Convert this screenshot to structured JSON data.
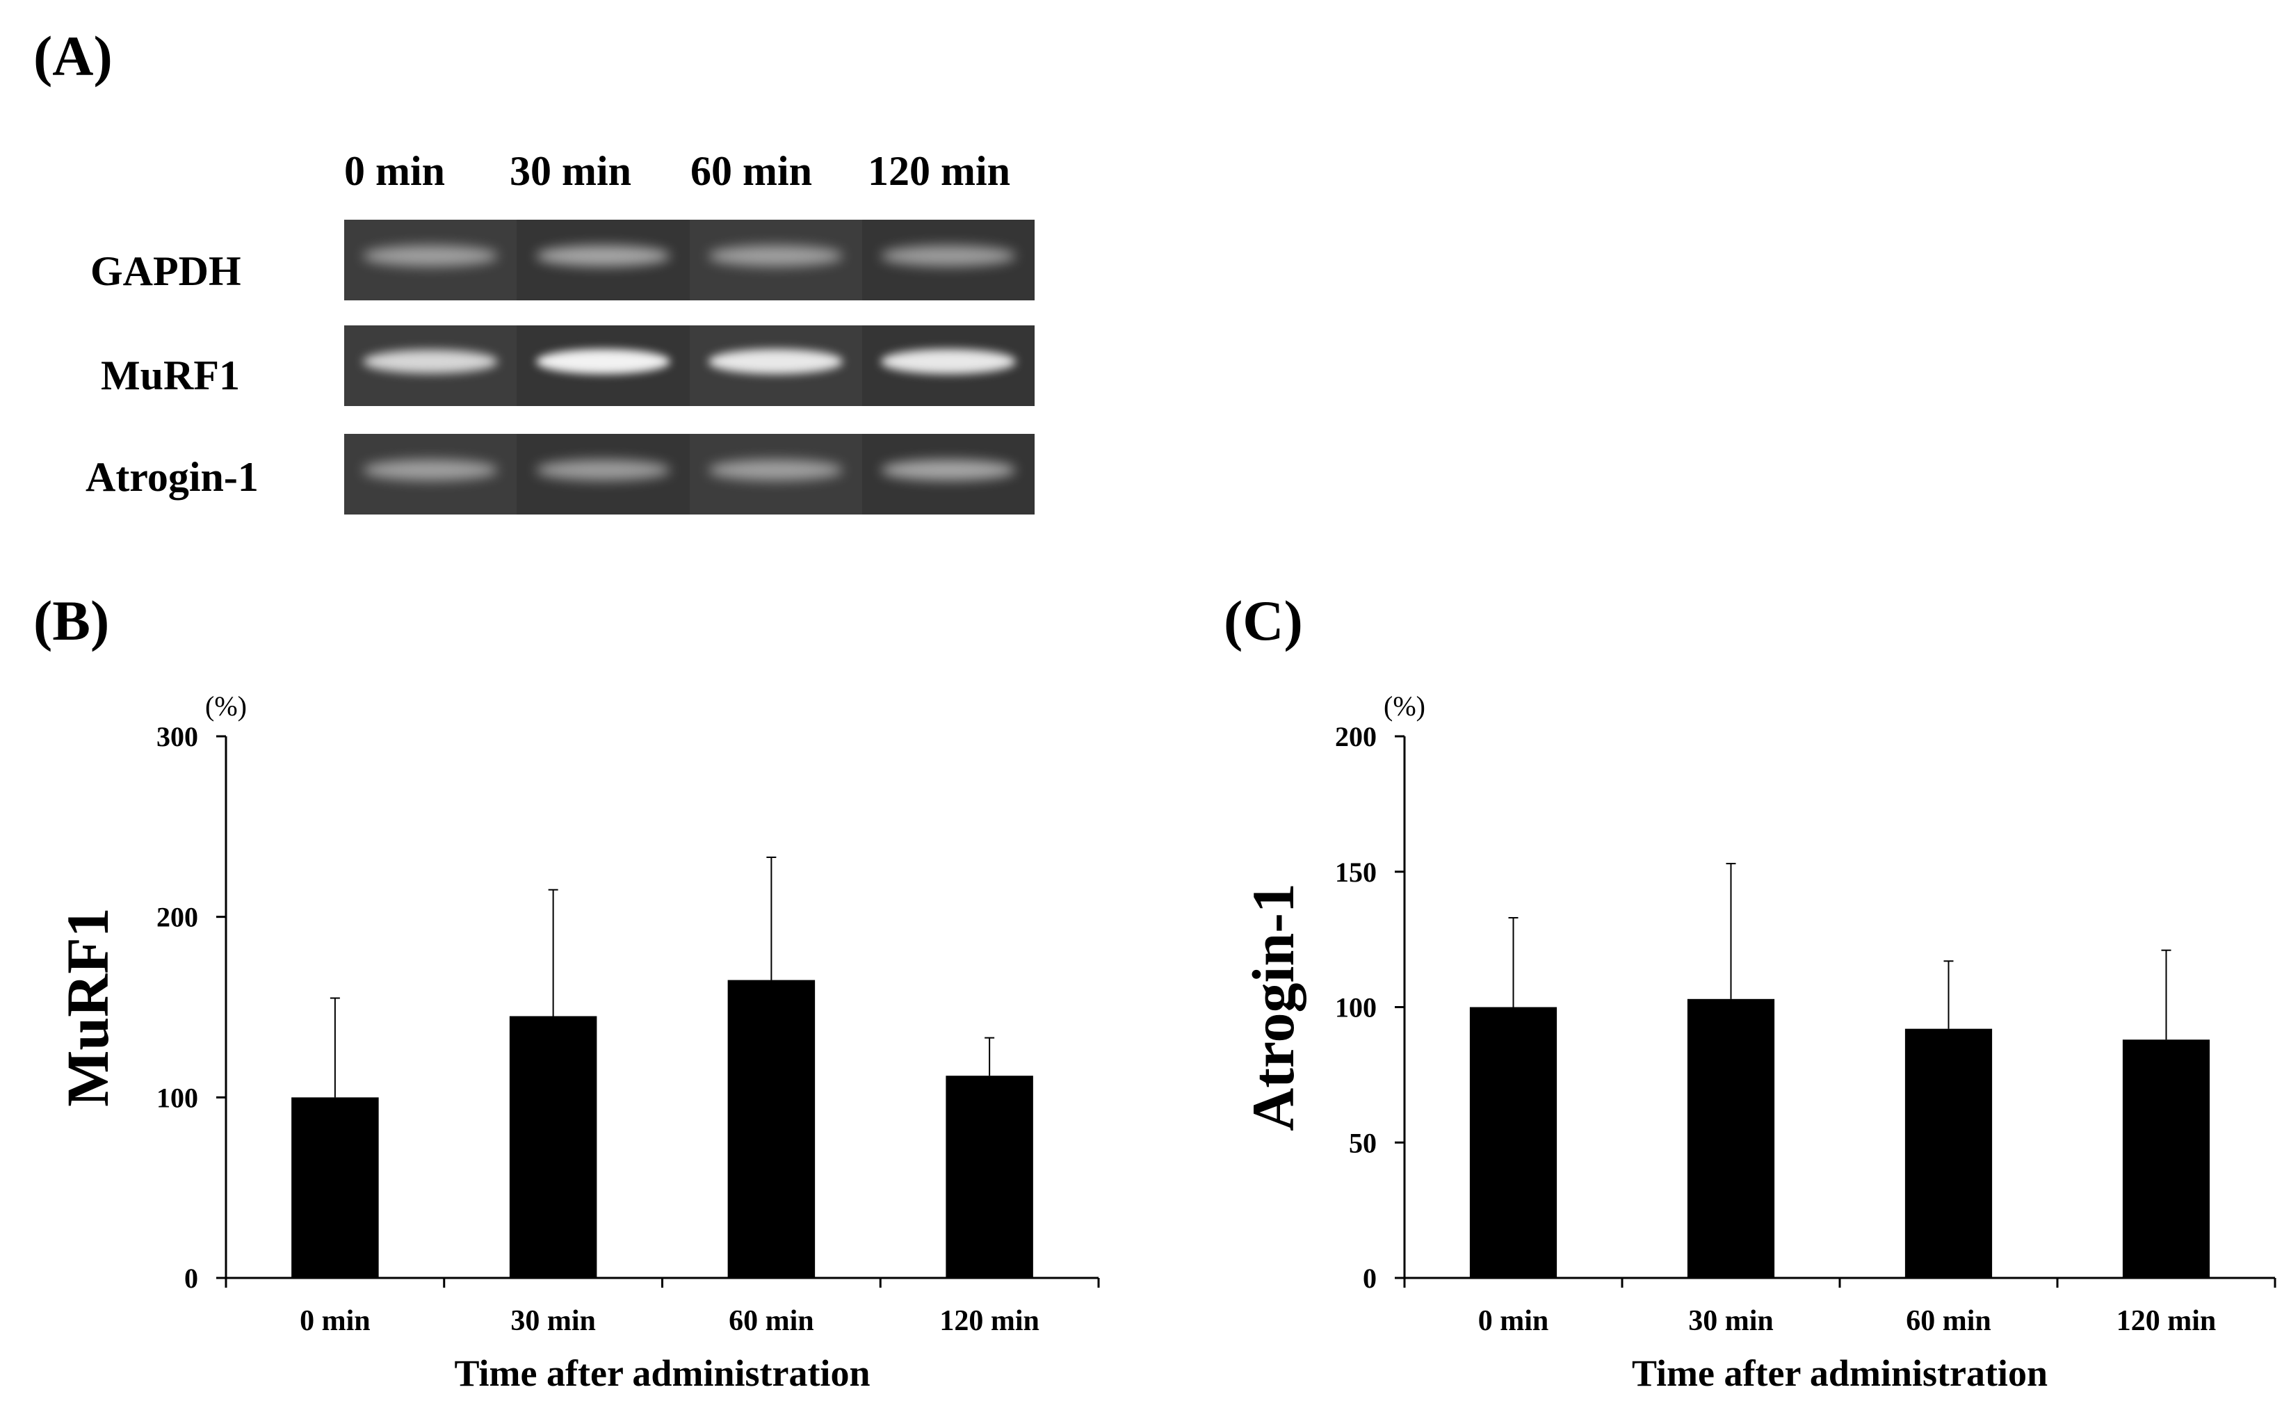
{
  "panel_labels": {
    "a": "(A)",
    "b": "(B)",
    "c": "(C)"
  },
  "gel": {
    "lanes": [
      "0 min",
      "30 min",
      "60 min",
      "120 min"
    ],
    "genes": [
      "GAPDH",
      "MuRF1",
      "Atrogin-1"
    ],
    "band_intensity": [
      [
        0.55,
        0.6,
        0.55,
        0.55
      ],
      [
        0.85,
        1.0,
        0.95,
        0.95
      ],
      [
        0.55,
        0.55,
        0.55,
        0.6
      ]
    ],
    "colors": {
      "background": "#3b3b3b",
      "band": "#f2f2f2"
    }
  },
  "chart_data": [
    {
      "type": "bar",
      "panel": "(B)",
      "categories": [
        "0 min",
        "30 min",
        "60 min",
        "120 min"
      ],
      "values": [
        100,
        145,
        165,
        112
      ],
      "error_upper": [
        155,
        215,
        233,
        133
      ],
      "xlabel": "Time after administration",
      "ylabel": "MuRF1",
      "unit": "(%)",
      "ylim": [
        0,
        300
      ],
      "yticks": [
        "0",
        "100",
        "200",
        "300"
      ],
      "bar_color": "#000000",
      "grid": false
    },
    {
      "type": "bar",
      "panel": "(C)",
      "categories": [
        "0 min",
        "30 min",
        "60 min",
        "120 min"
      ],
      "values": [
        100,
        103,
        92,
        88
      ],
      "error_upper": [
        133,
        153,
        117,
        121
      ],
      "xlabel": "Time after administration",
      "ylabel": "Atrogin-1",
      "unit": "(%)",
      "ylim": [
        0,
        200
      ],
      "yticks": [
        "0",
        "50",
        "100",
        "150",
        "200"
      ],
      "bar_color": "#000000",
      "grid": false
    }
  ]
}
